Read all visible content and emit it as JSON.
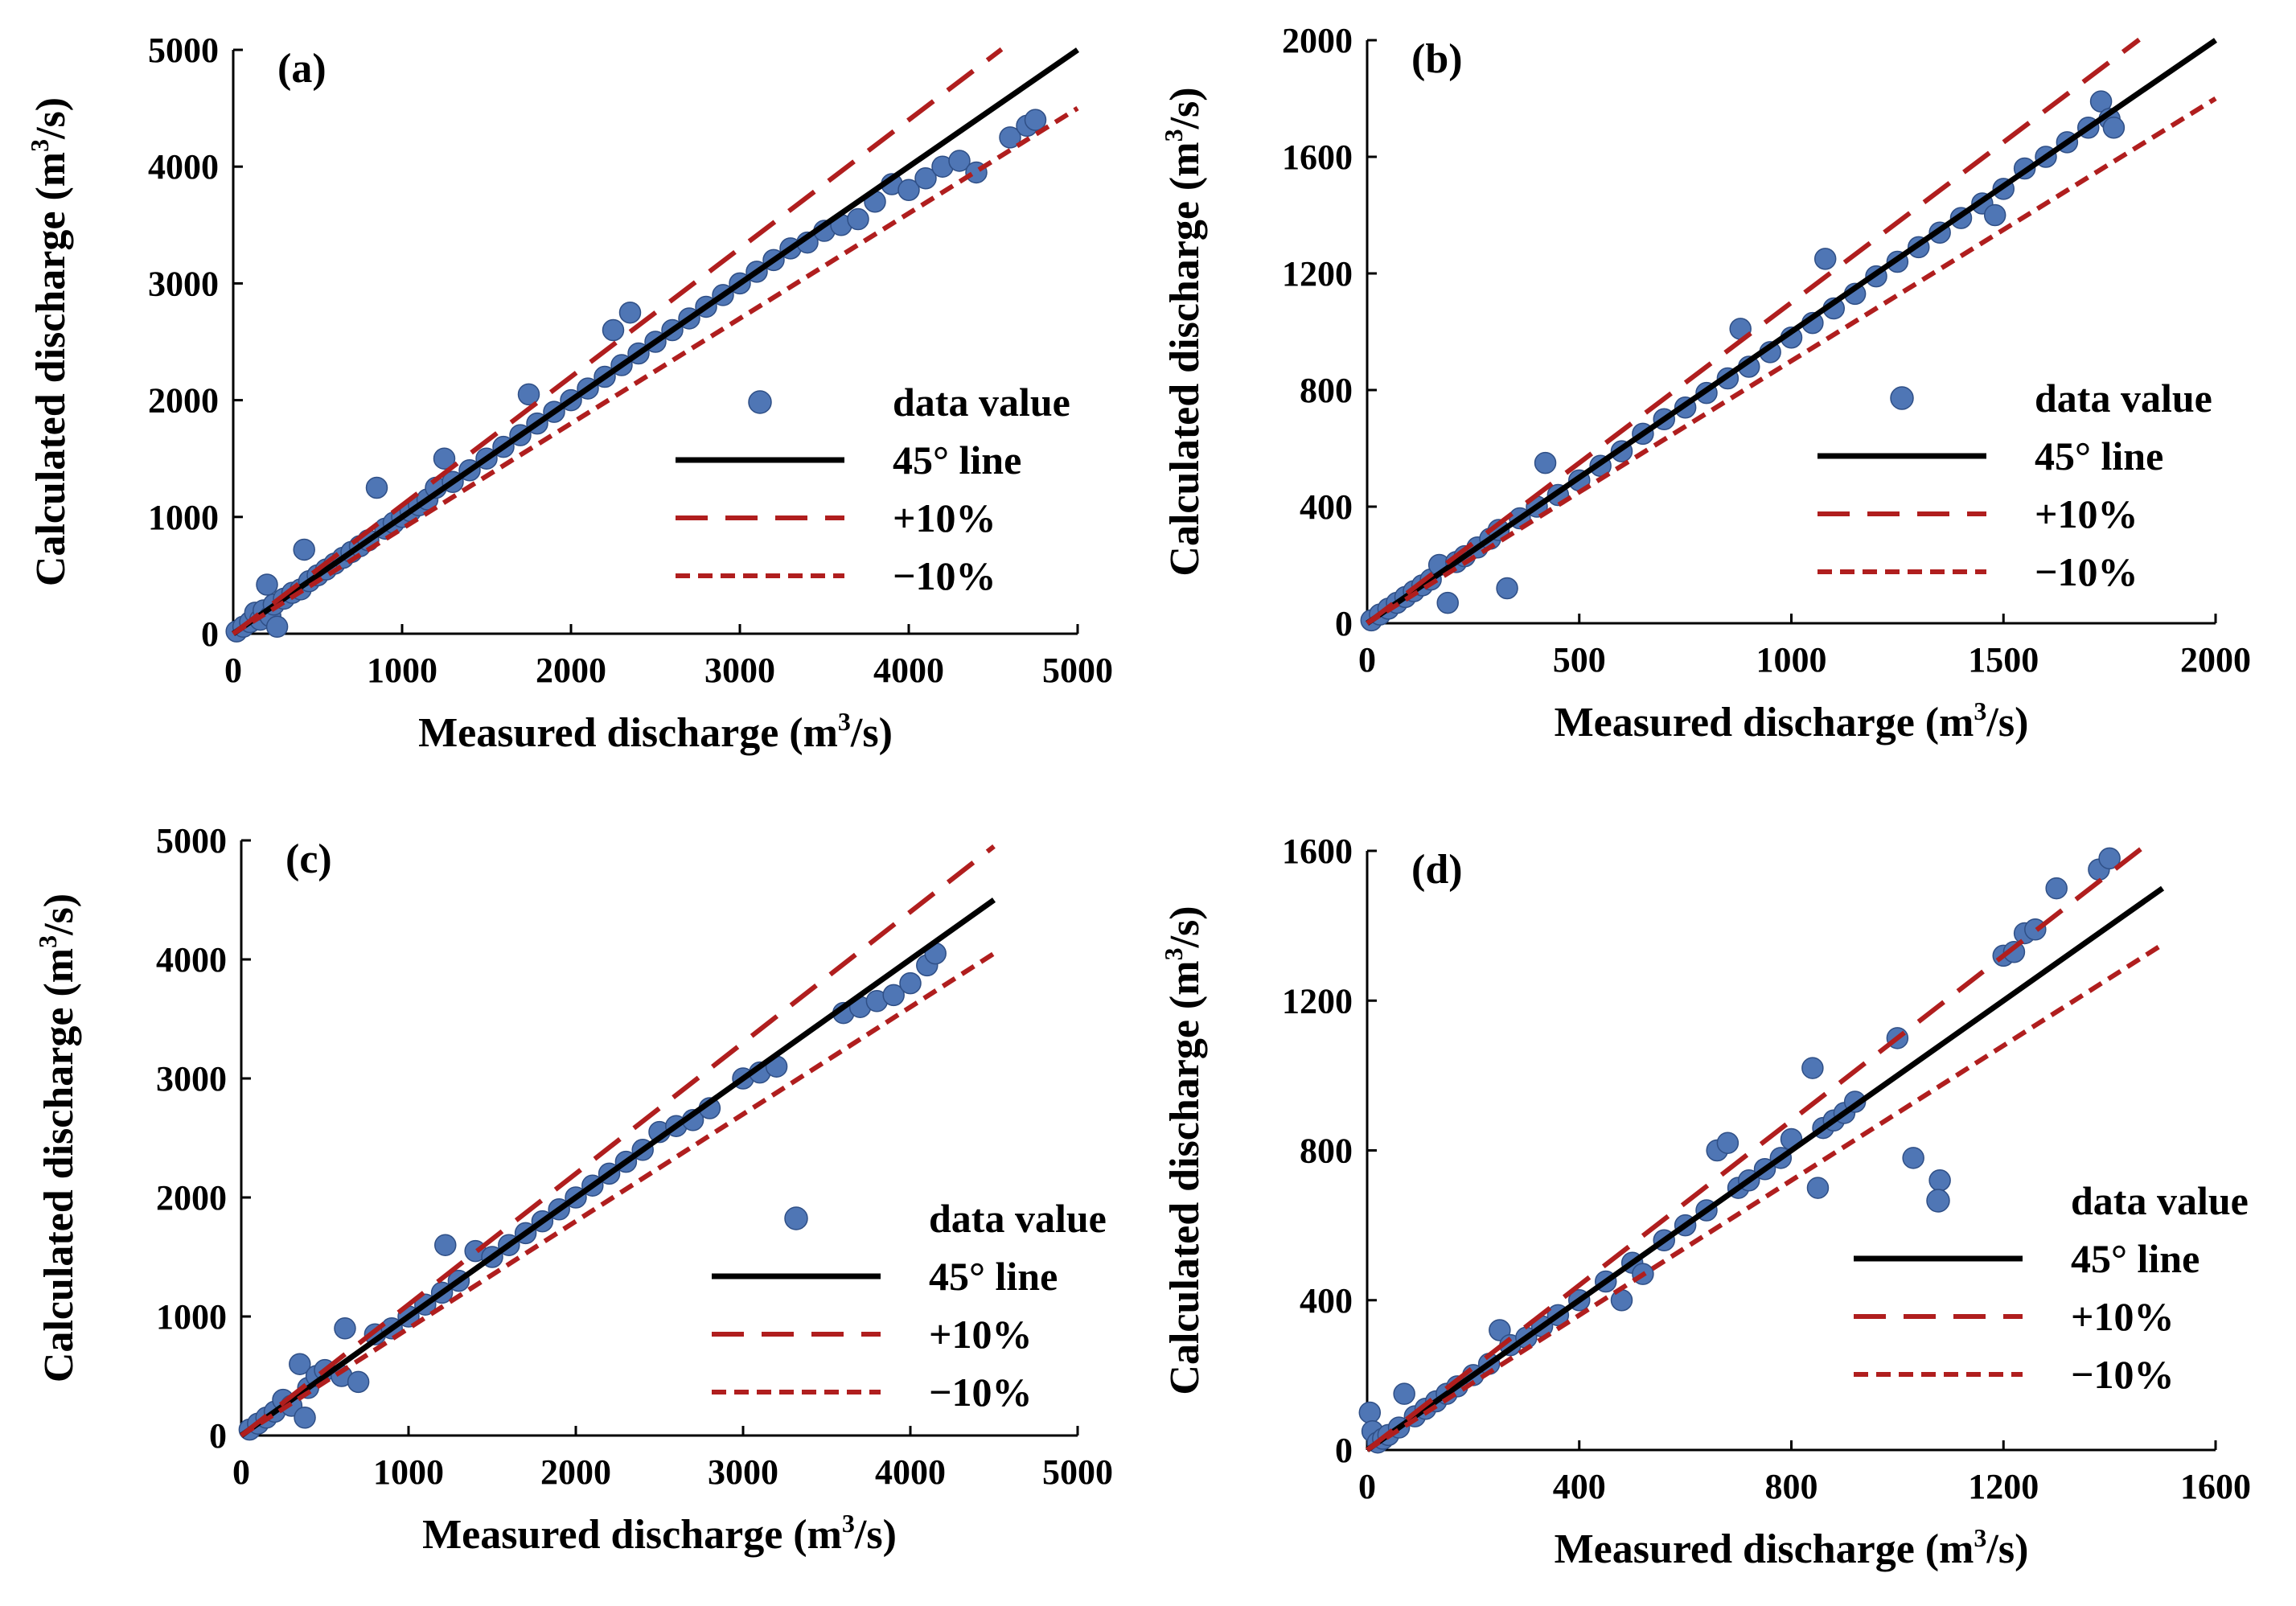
{
  "styles": {
    "point_color": "#4f76b5",
    "point_edge": "#2f4f86",
    "line45_color": "#000000",
    "plus10_color": "#b01e1e",
    "minus10_color": "#b01e1e"
  },
  "chart_data": [
    {
      "type": "scatter",
      "panel": "(a)",
      "xlabel_main": "Measured  discharge (m",
      "xlabel_sup": "3",
      "xlabel_tail": "/s)",
      "ylabel_main": "Calculated discharge (m",
      "ylabel_sup": "3",
      "ylabel_tail": "/s)",
      "xlim": [
        0,
        5000
      ],
      "ylim": [
        0,
        5000
      ],
      "xticks": [
        "0",
        "1000",
        "2000",
        "3000",
        "4000",
        "5000"
      ],
      "yticks": [
        "0",
        "1000",
        "2000",
        "3000",
        "4000",
        "5000"
      ],
      "legend": {
        "position": "lower-right",
        "entries": [
          "data value",
          "45° line",
          "+10%",
          "−10%"
        ]
      },
      "series": [
        {
          "name": "data value",
          "x": [
            20,
            60,
            100,
            130,
            160,
            180,
            200,
            220,
            240,
            260,
            300,
            350,
            400,
            420,
            450,
            500,
            550,
            600,
            650,
            700,
            750,
            800,
            850,
            900,
            950,
            1000,
            1050,
            1100,
            1150,
            1200,
            1250,
            1300,
            1400,
            1500,
            1600,
            1700,
            1750,
            1800,
            1900,
            2000,
            2100,
            2200,
            2250,
            2300,
            2350,
            2400,
            2500,
            2600,
            2700,
            2800,
            2900,
            3000,
            3100,
            3200,
            3300,
            3400,
            3500,
            3600,
            3700,
            3800,
            3900,
            4000,
            4100,
            4200,
            4300,
            4400,
            4600,
            4700,
            4750
          ],
          "y": [
            20,
            60,
            100,
            180,
            120,
            200,
            420,
            150,
            250,
            60,
            300,
            350,
            380,
            720,
            450,
            500,
            550,
            600,
            650,
            700,
            750,
            800,
            1250,
            900,
            950,
            1000,
            1050,
            1100,
            1150,
            1250,
            1500,
            1300,
            1400,
            1500,
            1600,
            1700,
            2050,
            1800,
            1900,
            2000,
            2100,
            2200,
            2600,
            2300,
            2750,
            2400,
            2500,
            2600,
            2700,
            2800,
            2900,
            3000,
            3100,
            3200,
            3300,
            3350,
            3450,
            3500,
            3550,
            3700,
            3850,
            3800,
            3900,
            4000,
            4050,
            3950,
            4250,
            4350,
            4400
          ]
        },
        {
          "name": "45° line",
          "x": [
            0,
            5000
          ],
          "y": [
            0,
            5000
          ]
        },
        {
          "name": "+10%",
          "x": [
            0,
            4550
          ],
          "y": [
            0,
            5005
          ]
        },
        {
          "name": "−10%",
          "x": [
            0,
            5000
          ],
          "y": [
            0,
            4500
          ]
        }
      ]
    },
    {
      "type": "scatter",
      "panel": "(b)",
      "xlabel_main": "Measured  discharge (m",
      "xlabel_sup": "3",
      "xlabel_tail": "/s)",
      "ylabel_main": "Calculated discharge (m",
      "ylabel_sup": "3",
      "ylabel_tail": "/s)",
      "xlim": [
        0,
        2000
      ],
      "ylim": [
        0,
        2000
      ],
      "xticks": [
        "0",
        "500",
        "1000",
        "1500",
        "2000"
      ],
      "yticks": [
        "0",
        "400",
        "800",
        "1200",
        "1600",
        "2000"
      ],
      "legend": {
        "position": "lower-right",
        "entries": [
          "data value",
          "45° line",
          "+10%",
          "−10%"
        ]
      },
      "series": [
        {
          "name": "data value",
          "x": [
            10,
            30,
            50,
            70,
            90,
            110,
            130,
            150,
            170,
            190,
            210,
            230,
            260,
            290,
            310,
            330,
            360,
            400,
            420,
            450,
            500,
            550,
            600,
            650,
            700,
            750,
            800,
            850,
            880,
            900,
            950,
            1000,
            1050,
            1080,
            1100,
            1150,
            1200,
            1250,
            1300,
            1350,
            1400,
            1450,
            1480,
            1500,
            1550,
            1600,
            1650,
            1700,
            1730,
            1750,
            1760
          ],
          "y": [
            10,
            30,
            50,
            70,
            90,
            110,
            130,
            150,
            200,
            70,
            210,
            230,
            260,
            290,
            320,
            120,
            360,
            400,
            550,
            440,
            490,
            540,
            590,
            650,
            700,
            740,
            790,
            840,
            1010,
            880,
            930,
            980,
            1030,
            1250,
            1080,
            1130,
            1190,
            1240,
            1290,
            1340,
            1390,
            1440,
            1400,
            1490,
            1560,
            1600,
            1650,
            1700,
            1790,
            1730,
            1700
          ]
        },
        {
          "name": "45° line",
          "x": [
            0,
            2000
          ],
          "y": [
            0,
            2000
          ]
        },
        {
          "name": "+10%",
          "x": [
            0,
            1820
          ],
          "y": [
            0,
            2002
          ]
        },
        {
          "name": "−10%",
          "x": [
            0,
            2000
          ],
          "y": [
            0,
            1800
          ]
        }
      ]
    },
    {
      "type": "scatter",
      "panel": "(c)",
      "xlabel_main": "Measured  discharge (m",
      "xlabel_sup": "3",
      "xlabel_tail": "/s)",
      "ylabel_main": "Calculated discharge (m",
      "ylabel_sup": "3",
      "ylabel_tail": "/s)",
      "xlim": [
        0,
        5000
      ],
      "ylim": [
        0,
        5000
      ],
      "xticks": [
        "0",
        "1000",
        "2000",
        "3000",
        "4000",
        "5000"
      ],
      "yticks": [
        "0",
        "1000",
        "2000",
        "3000",
        "4000",
        "5000"
      ],
      "legend": {
        "position": "lower-right",
        "entries": [
          "data value",
          "45° line",
          "+10%",
          "−10%"
        ]
      },
      "series": [
        {
          "name": "data value",
          "x": [
            50,
            100,
            150,
            200,
            250,
            300,
            350,
            380,
            400,
            450,
            500,
            600,
            620,
            700,
            800,
            900,
            1000,
            1100,
            1200,
            1220,
            1300,
            1400,
            1500,
            1600,
            1700,
            1800,
            1900,
            2000,
            2100,
            2200,
            2300,
            2400,
            2500,
            2600,
            2700,
            2800,
            3000,
            3100,
            3200,
            3600,
            3700,
            3800,
            3900,
            4000,
            4100,
            4150
          ],
          "y": [
            50,
            100,
            150,
            200,
            300,
            250,
            600,
            150,
            400,
            500,
            550,
            500,
            900,
            450,
            850,
            900,
            1000,
            1100,
            1200,
            1600,
            1300,
            1550,
            1500,
            1600,
            1700,
            1800,
            1900,
            2000,
            2100,
            2200,
            2300,
            2400,
            2550,
            2600,
            2650,
            2750,
            3000,
            3050,
            3100,
            3550,
            3600,
            3650,
            3700,
            3800,
            3950,
            4050
          ]
        },
        {
          "name": "45° line",
          "x": [
            0,
            4500
          ],
          "y": [
            0,
            4500
          ]
        },
        {
          "name": "+10%",
          "x": [
            0,
            4500
          ],
          "y": [
            0,
            4950
          ]
        },
        {
          "name": "−10%",
          "x": [
            0,
            4500
          ],
          "y": [
            0,
            4050
          ]
        }
      ]
    },
    {
      "type": "scatter",
      "panel": "(d)",
      "xlabel_main": "Measured  discharge (m",
      "xlabel_sup": "3",
      "xlabel_tail": "/s)",
      "ylabel_main": "Calculated discharge (m",
      "ylabel_sup": "3",
      "ylabel_tail": "/s)",
      "xlim": [
        0,
        1600
      ],
      "ylim": [
        0,
        1600
      ],
      "xticks": [
        "0",
        "400",
        "800",
        "1200",
        "1600"
      ],
      "yticks": [
        "0",
        "400",
        "800",
        "1200",
        "1600"
      ],
      "legend": {
        "position": "center-right",
        "entries": [
          "data value",
          "45° line",
          "+10%",
          "−10%"
        ]
      },
      "series": [
        {
          "name": "data value",
          "x": [
            5,
            10,
            20,
            30,
            40,
            60,
            70,
            90,
            110,
            130,
            150,
            170,
            200,
            230,
            250,
            270,
            300,
            330,
            360,
            400,
            450,
            480,
            500,
            520,
            560,
            600,
            640,
            660,
            680,
            700,
            720,
            750,
            780,
            800,
            840,
            850,
            860,
            880,
            900,
            920,
            1000,
            1030,
            1080,
            1200,
            1220,
            1240,
            1260,
            1300,
            1380,
            1400
          ],
          "y": [
            100,
            50,
            20,
            30,
            40,
            60,
            150,
            90,
            110,
            130,
            150,
            170,
            200,
            230,
            320,
            280,
            300,
            330,
            360,
            400,
            450,
            400,
            500,
            470,
            560,
            600,
            640,
            800,
            820,
            700,
            720,
            750,
            780,
            830,
            1020,
            700,
            860,
            880,
            900,
            930,
            1100,
            780,
            720,
            1320,
            1330,
            1380,
            1390,
            1500,
            1550,
            1580
          ]
        },
        {
          "name": "45° line",
          "x": [
            0,
            1500
          ],
          "y": [
            0,
            1500
          ]
        },
        {
          "name": "+10%",
          "x": [
            0,
            1460
          ],
          "y": [
            0,
            1606
          ]
        },
        {
          "name": "−10%",
          "x": [
            0,
            1500
          ],
          "y": [
            0,
            1350
          ]
        }
      ]
    }
  ]
}
